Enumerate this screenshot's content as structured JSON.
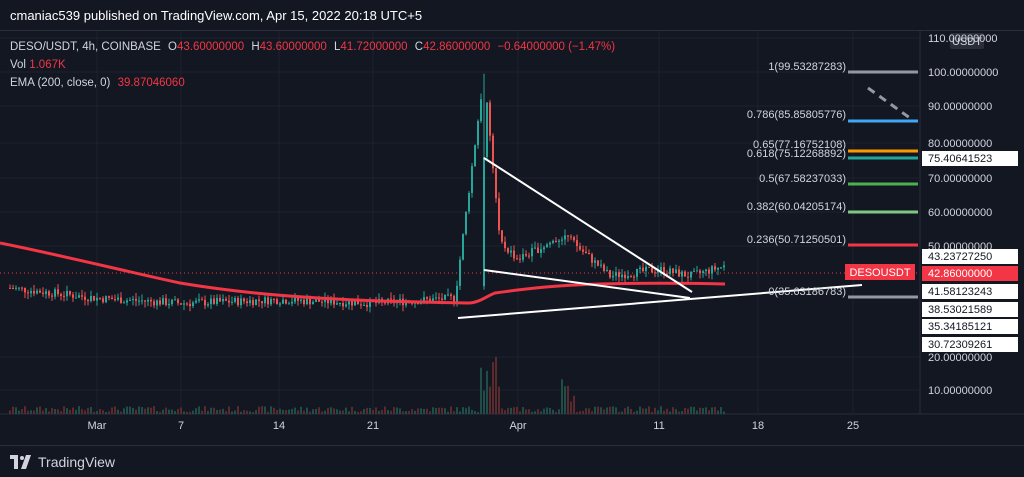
{
  "header": {
    "publisher_line": "cmaniac539 published on TradingView.com, Apr 15, 2022 20:18 UTC+5"
  },
  "legend": {
    "symbol_line": "DESO/USDT, 4h, COINBASE",
    "open_label": "O",
    "open": "43.60000000",
    "high_label": "H",
    "high": "43.60000000",
    "low_label": "L",
    "low": "41.72000000",
    "close_label": "C",
    "close": "42.86000000",
    "change": "−0.64000000 (−1.47%)",
    "vol_label": "Vol",
    "vol": "1.067K",
    "ema_label": "EMA (200, close, 0)",
    "ema": "39.87046060"
  },
  "price_axis": {
    "currency": "USDT",
    "ticks": [
      "110.00000000",
      "100.00000000",
      "90.00000000",
      "80.00000000",
      "70.00000000",
      "60.00000000",
      "50.00000000",
      "20.00000000",
      "10.00000000"
    ]
  },
  "price_tags": [
    {
      "text": "75.40641523",
      "bg": "#ffffff",
      "fg": "#131722"
    },
    {
      "text": "43.23727250",
      "bg": "#ffffff",
      "fg": "#131722"
    },
    {
      "text": "42.86000000",
      "bg": "#f23645",
      "fg": "#ffffff"
    },
    {
      "text": "41.58123243",
      "bg": "#ffffff",
      "fg": "#131722"
    },
    {
      "text": "38.53021589",
      "bg": "#ffffff",
      "fg": "#131722"
    },
    {
      "text": "35.34185121",
      "bg": "#ffffff",
      "fg": "#131722"
    },
    {
      "text": "30.72309261",
      "bg": "#ffffff",
      "fg": "#131722"
    }
  ],
  "symbol_tag": "DESOUSDT",
  "fib_levels": [
    {
      "ratio": "1",
      "value": "99.53287283",
      "label": "1(99.53287283)",
      "color": "#9598a1"
    },
    {
      "ratio": "0.786",
      "value": "85.85805776",
      "label": "0.786(85.85805776)",
      "color": "#42a5f5"
    },
    {
      "ratio": "0.65",
      "value": "77.16752108",
      "label": "0.65(77.16752108)",
      "color": "#ff9800"
    },
    {
      "ratio": "0.618",
      "value": "75.12268892",
      "label": "0.618(75.12268892)",
      "color": "#26a69a"
    },
    {
      "ratio": "0.5",
      "value": "67.58237033",
      "label": "0.5(67.58237033)",
      "color": "#4caf50"
    },
    {
      "ratio": "0.382",
      "value": "60.04205174",
      "label": "0.382(60.04205174)",
      "color": "#81c784"
    },
    {
      "ratio": "0.236",
      "value": "50.71250501",
      "label": "0.236(50.71250501)",
      "color": "#f23645"
    },
    {
      "ratio": "0",
      "value": "35.63186783",
      "label": "0(35.63186783)",
      "color": "#9598a1"
    }
  ],
  "time_axis": [
    "Mar",
    "7",
    "14",
    "21",
    "Apr",
    "11",
    "18",
    "25"
  ],
  "footer": {
    "brand": "TradingView"
  },
  "colors": {
    "background": "#131722",
    "up": "#26a69a",
    "down": "#ef5350",
    "ema": "#f23645",
    "drawing": "#ffffff"
  },
  "chart_data": {
    "type": "candlestick",
    "symbol": "DESO/USDT",
    "interval": "4h",
    "exchange": "COINBASE",
    "series": [
      {
        "name": "DESO/USDT",
        "approx_close": [
          {
            "x": "Feb 25",
            "y": 36.5
          },
          {
            "x": "Mar 1",
            "y": 33.5
          },
          {
            "x": "Mar 7",
            "y": 32.0
          },
          {
            "x": "Mar 14",
            "y": 33.0
          },
          {
            "x": "Mar 21",
            "y": 32.0
          },
          {
            "x": "Mar 28",
            "y": 33.5
          },
          {
            "x": "Mar 31",
            "y": 99.5
          },
          {
            "x": "Apr 1",
            "y": 50.0
          },
          {
            "x": "Apr 4",
            "y": 45.0
          },
          {
            "x": "Apr 7",
            "y": 52.0
          },
          {
            "x": "Apr 9",
            "y": 40.0
          },
          {
            "x": "Apr 11",
            "y": 42.0
          },
          {
            "x": "Apr 13",
            "y": 40.0
          },
          {
            "x": "Apr 15",
            "y": 42.86
          }
        ]
      },
      {
        "name": "EMA (200, close, 0)",
        "approx": [
          {
            "x": "Feb 25",
            "y": 49.0
          },
          {
            "x": "Mar 7",
            "y": 40.5
          },
          {
            "x": "Mar 21",
            "y": 36.5
          },
          {
            "x": "Mar 31",
            "y": 36.0
          },
          {
            "x": "Apr 11",
            "y": 40.5
          },
          {
            "x": "Apr 15",
            "y": 39.87
          }
        ]
      }
    ],
    "ylim": [
      0,
      110
    ],
    "grid": true
  }
}
